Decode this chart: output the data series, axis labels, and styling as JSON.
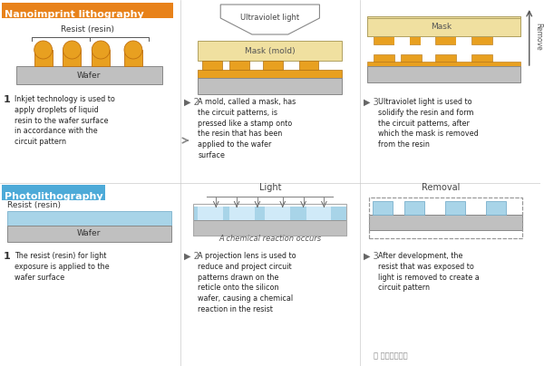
{
  "bg_color": "#ffffff",
  "nano_header_color": "#e8821a",
  "photo_header_color": "#4daad8",
  "nano_title": "Nanoimprint lithography",
  "photo_title": "Photolithography",
  "wafer_color": "#c0c0c0",
  "resist_orange": "#e8a020",
  "resist_blue": "#a8d4e8",
  "mask_top_color": "#f0e0a0",
  "mask_stripe_color": "#e8a020",
  "text_color": "#222222",
  "step_texts_nano": [
    "Inkjet technology is used to\napply droplets of liquid\nresin to the wafer surface\nin accordance with the\ncircuit pattern",
    "A mold, called a mask, has\nthe circuit patterns, is\npressed like a stamp onto\nthe resin that has been\napplied to the wafer\nsurface",
    "Ultraviolet light is used to\nsolidify the resin and form\nthe circuit patterns, after\nwhich the mask is removed\nfrom the resin"
  ],
  "step_texts_photo": [
    "The resist (resin) for light\nexposure is applied to the\nwafer surface",
    "A projection lens is used to\nreduce and project circuit\npatterns drawn on the\nreticle onto the silicon\nwafer, causing a chemical\nreaction in the resist",
    "After development, the\nresist that was exposed to\nlight is removed to create a\ncircuit pattern"
  ],
  "watermark": "公众号芯智讯",
  "uv_label": "Ultraviolet light",
  "light_label": "Light",
  "removal_label": "Removal",
  "mask_label": "Mask",
  "mask_mold_label": "Mask (mold)",
  "resist_resin_label": "Resist (resin)",
  "wafer_label": "Wafer",
  "chemical_label": "A chemical reaction occurs",
  "remove_label": "Remove"
}
